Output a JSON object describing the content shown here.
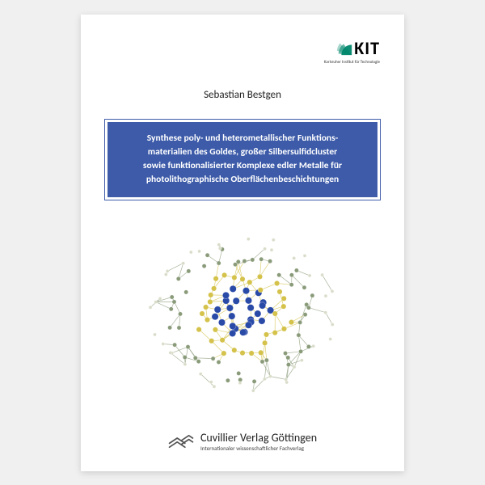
{
  "logo": {
    "text": "KIT",
    "subtitle": "Karlsruher Institut für Technologie",
    "fan_color": "#00876c",
    "text_color": "#000000"
  },
  "author": "Sebastian Bestgen",
  "title": {
    "line1": "Synthese poly- und heterometallischer Funktions-",
    "line2": "materialien des Goldes, großer Silbersulfidcluster",
    "line3": "sowie funktionalisierter Komplexe edler Metalle für",
    "line4": "photolithographische Oberflächenbeschichtungen",
    "background_color": "#3d5ba9",
    "text_color": "#ffffff"
  },
  "molecule": {
    "core_color": "#2a4aa8",
    "edge_color": "#d4c24a",
    "outer_color": "#8a9b7a",
    "light_color": "#d8dcc8",
    "background": "#ffffff"
  },
  "publisher": {
    "name": "Cuvillier Verlag Göttingen",
    "subtitle": "Internationaler wissenschaftlicher Fachverlag",
    "logo_color": "#555555"
  }
}
